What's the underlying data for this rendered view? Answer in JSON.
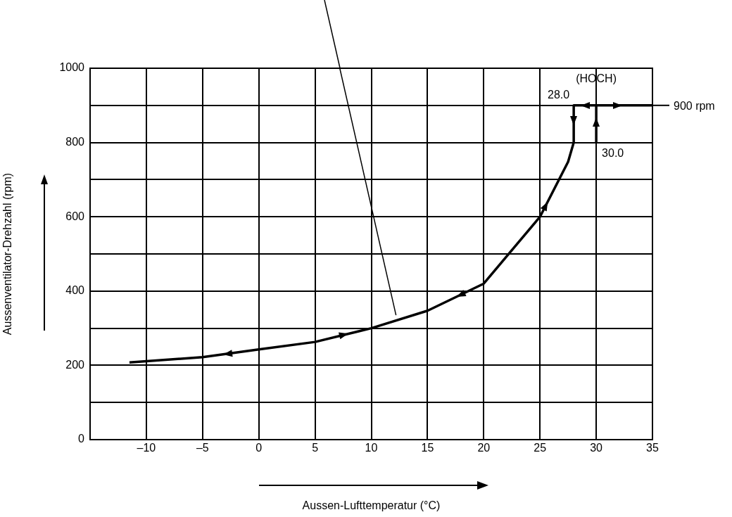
{
  "chart_data": {
    "type": "line",
    "xlabel": "Aussen-Lufttemperatur (°C)",
    "ylabel": "Aussenventilator-Drehzahl (rpm)",
    "xlim": [
      -15,
      35
    ],
    "xticks": [
      {
        "value": -15,
        "label": null
      },
      {
        "value": -10,
        "label": "–10"
      },
      {
        "value": -5,
        "label": "–5"
      },
      0,
      5,
      10,
      15,
      20,
      25,
      30,
      35
    ],
    "ylim": [
      0,
      1000
    ],
    "yticks": [
      0,
      {
        "value": 100,
        "label": null
      },
      200,
      {
        "value": 300,
        "label": null
      },
      400,
      {
        "value": 500,
        "label": null
      },
      600,
      {
        "value": 700,
        "label": null
      },
      800,
      {
        "value": 900,
        "label": null
      },
      1000
    ],
    "grid": true,
    "legend": false,
    "marker": "none",
    "line_style": "solid",
    "series": [
      {
        "color": "#000000",
        "x": [
          -11.5,
          -5,
          0,
          5,
          10,
          15,
          20,
          22.5,
          25,
          27.5,
          28,
          28,
          35
        ],
        "values": [
          208,
          222,
          243,
          263,
          300,
          347,
          420,
          510,
          600,
          748,
          800,
          900,
          900
        ]
      },
      {
        "color": "#000000",
        "x": [
          30,
          30
        ],
        "values": [
          800,
          900
        ]
      },
      {
        "color": "#000000",
        "x": [
          7.2,
          12.2
        ],
        "values": [
          1000,
          335
        ]
      }
    ],
    "annotations": [
      {
        "text": "28.0",
        "x": 28,
        "y": 900
      },
      {
        "text": "30.0",
        "x": 30,
        "y": 800
      },
      {
        "text": "(HOCH)",
        "x": 30,
        "y": 900
      },
      {
        "text": "900 rpm",
        "x": 35,
        "y": 900
      }
    ]
  }
}
